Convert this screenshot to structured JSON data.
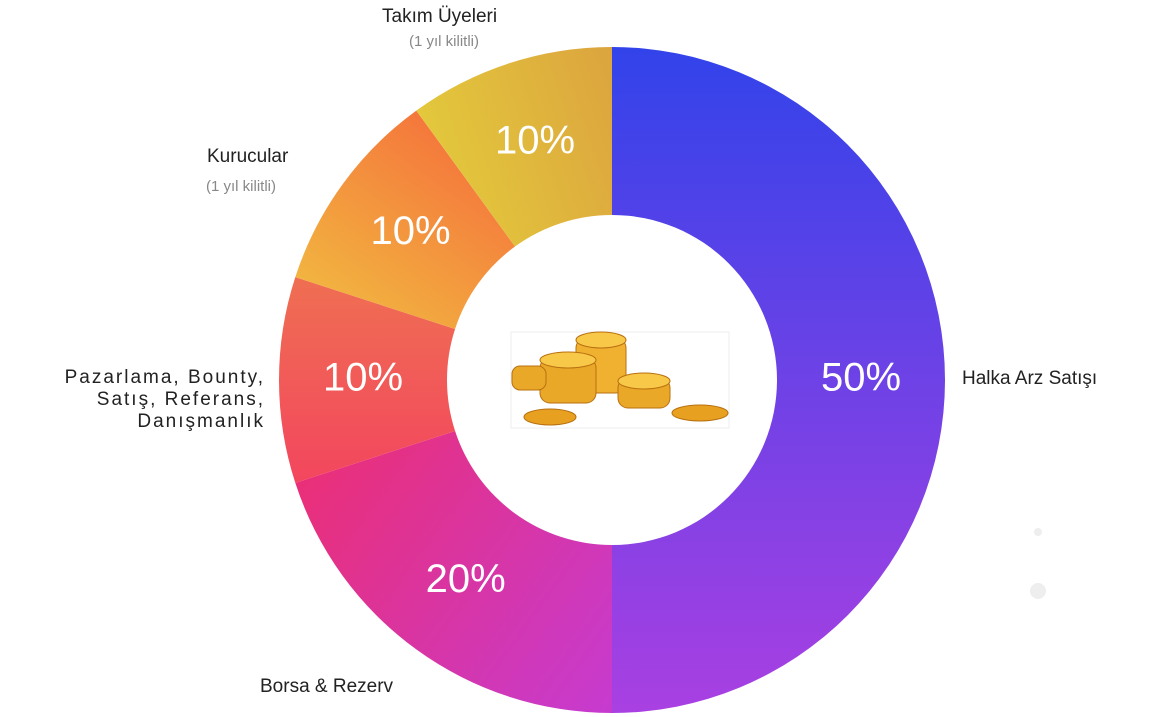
{
  "chart_data": {
    "type": "pie",
    "donut": true,
    "categories": [
      "Halka Arz Satışı",
      "Borsa & Rezerv",
      "Pazarlama, Bounty,\nSatış, Referans,\nDanışmanlık",
      "Kurucular",
      "Takım Üyeleri"
    ],
    "sublabels": [
      null,
      null,
      null,
      "(1 yıl kilitli)",
      "(1 yıl kilitli)"
    ],
    "values": [
      50,
      20,
      10,
      10,
      10
    ],
    "value_labels": [
      "50%",
      "20%",
      "10%",
      "10%",
      "10%"
    ],
    "colors": [
      [
        "#3243ea",
        "#a940e2"
      ],
      [
        "#c63bd0",
        "#ea2f78"
      ],
      [
        "#f3465e",
        "#ef6f52"
      ],
      [
        "#f2b440",
        "#f4773c"
      ],
      [
        "#e3c83c",
        "#dca43e"
      ]
    ]
  }
}
